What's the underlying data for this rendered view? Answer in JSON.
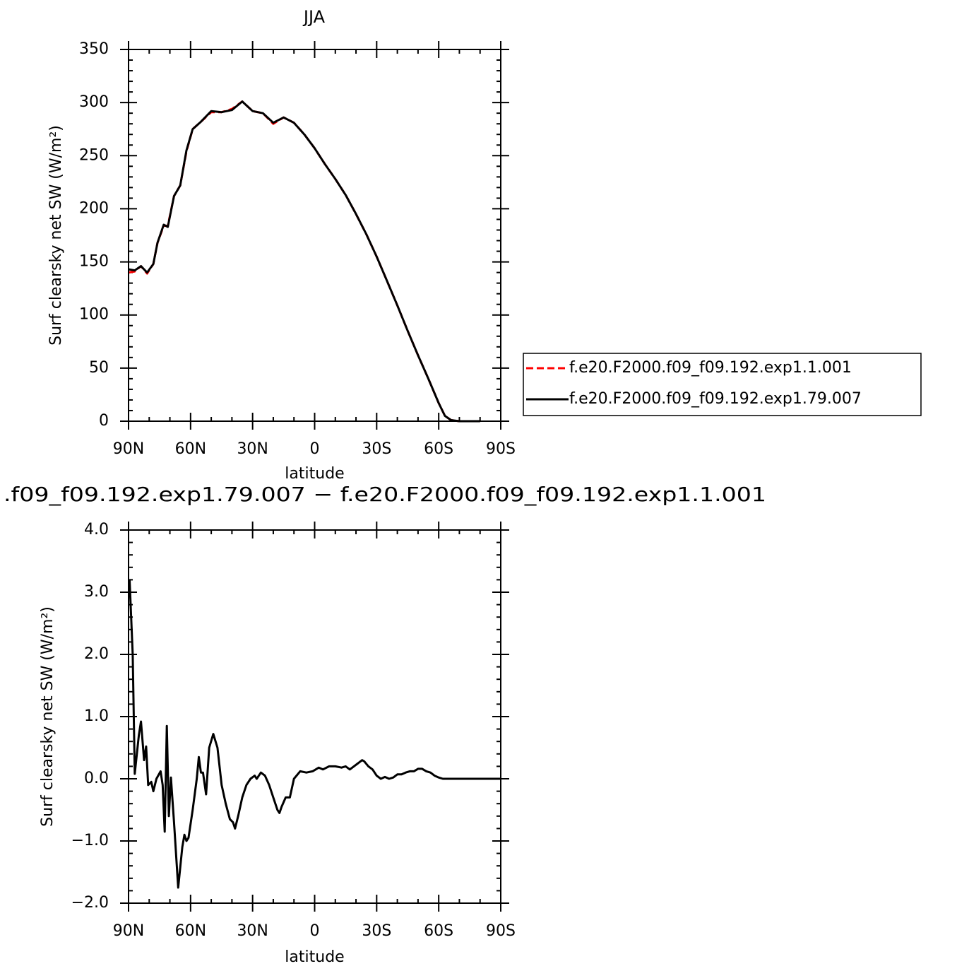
{
  "chart_data": [
    {
      "type": "line",
      "title": "JJA",
      "xlabel": "latitude",
      "ylabel": "Surf clearsky net SW (W/m²)",
      "xlim": [
        90,
        -90
      ],
      "xticks": [
        {
          "value": 90,
          "label": "90N"
        },
        {
          "value": 60,
          "label": "60N"
        },
        {
          "value": 30,
          "label": "30N"
        },
        0,
        {
          "value": -30,
          "label": "30S"
        },
        {
          "value": -60,
          "label": "60S"
        },
        {
          "value": -90,
          "label": "90S"
        }
      ],
      "ylim": [
        0,
        350
      ],
      "yticks": [
        0,
        50,
        100,
        150,
        200,
        250,
        300,
        350
      ],
      "legend": "right",
      "x": [
        90,
        87,
        84,
        81,
        78,
        76,
        73,
        71,
        68,
        65,
        62,
        59,
        55,
        50,
        45,
        40,
        35,
        30,
        25,
        20,
        15,
        10,
        5,
        0,
        -5,
        -10,
        -15,
        -20,
        -25,
        -30,
        -35,
        -40,
        -45,
        -50,
        -55,
        -60,
        -63,
        -66,
        -70,
        -80
      ],
      "series": [
        {
          "name": "f.e20.F2000.f09_f09.192.exp1.1.001",
          "color": "#ff0000",
          "dash": true,
          "values": [
            140,
            141,
            146,
            139,
            148,
            168,
            184,
            184,
            212,
            222,
            254,
            275,
            282,
            291,
            291,
            294,
            301,
            292,
            290,
            280,
            286,
            281,
            270,
            257,
            242,
            228,
            213,
            195,
            176,
            155,
            132,
            109,
            85,
            62,
            40,
            17,
            5,
            1,
            0,
            0
          ]
        },
        {
          "name": "f.e20.F2000.f09_f09.192.exp1.79.007",
          "color": "#000000",
          "dash": false,
          "values": [
            143,
            142,
            146,
            140,
            148,
            168,
            185,
            183,
            212,
            222,
            255,
            275,
            282,
            292,
            291,
            293,
            301,
            292,
            290,
            281,
            286,
            281,
            270,
            257,
            242,
            228,
            213,
            195,
            176,
            155,
            132,
            109,
            85,
            62,
            40,
            17,
            5,
            1,
            0,
            0
          ]
        }
      ]
    },
    {
      "type": "line",
      "title": ".f09_f09.192.exp1.79.007 − f.e20.F2000.f09_f09.192.exp1.1.001",
      "xlabel": "latitude",
      "ylabel": "Surf clearsky net SW (W/m²)",
      "xlim": [
        90,
        -90
      ],
      "xticks": [
        {
          "value": 90,
          "label": "90N"
        },
        {
          "value": 60,
          "label": "60N"
        },
        {
          "value": 30,
          "label": "30N"
        },
        0,
        {
          "value": -30,
          "label": "30S"
        },
        {
          "value": -60,
          "label": "60S"
        },
        {
          "value": -90,
          "label": "90S"
        }
      ],
      "ylim": [
        -2,
        4
      ],
      "yticks": [
        {
          "value": -2,
          "label": "−2.0"
        },
        {
          "value": -1,
          "label": "−1.0"
        },
        {
          "value": 0,
          "label": "0.0"
        },
        {
          "value": 1,
          "label": "1.0"
        },
        {
          "value": 2,
          "label": "2.0"
        },
        {
          "value": 3,
          "label": "3.0"
        },
        {
          "value": 4,
          "label": "4.0"
        }
      ],
      "x": [
        89.5,
        88,
        87,
        85,
        84,
        82.5,
        81.5,
        80.5,
        79,
        78,
        76.5,
        74.5,
        73.5,
        72.5,
        71.5,
        70.5,
        69.5,
        68,
        66,
        64,
        63,
        62,
        61,
        59,
        57,
        56,
        55,
        54,
        52.5,
        51,
        49,
        47,
        45,
        43,
        41,
        39.5,
        38.5,
        37,
        35,
        33,
        31,
        29,
        28,
        26,
        24,
        22,
        20,
        18,
        17,
        16,
        14,
        12,
        10,
        7,
        4,
        1,
        -2,
        -4,
        -7,
        -10,
        -13,
        -15,
        -17,
        -19,
        -21,
        -23,
        -24,
        -26,
        -28,
        -30,
        -32,
        -34,
        -36,
        -38,
        -40,
        -42,
        -44,
        -46,
        -48,
        -50,
        -52,
        -54,
        -56,
        -58,
        -60,
        -62,
        -70,
        -80,
        -90
      ],
      "series": [
        {
          "color": "#000000",
          "dash": false,
          "values": [
            3.2,
            2.0,
            0.08,
            0.7,
            0.92,
            0.3,
            0.52,
            -0.1,
            -0.05,
            -0.2,
            0.0,
            0.12,
            -0.1,
            -0.85,
            0.85,
            -0.6,
            0.02,
            -0.7,
            -1.75,
            -1.1,
            -0.9,
            -1.0,
            -0.95,
            -0.5,
            0.0,
            0.35,
            0.1,
            0.1,
            -0.25,
            0.5,
            0.72,
            0.5,
            -0.1,
            -0.4,
            -0.65,
            -0.7,
            -0.8,
            -0.6,
            -0.3,
            -0.1,
            0.0,
            0.05,
            0.0,
            0.1,
            0.05,
            -0.1,
            -0.3,
            -0.5,
            -0.55,
            -0.45,
            -0.3,
            -0.3,
            0.0,
            0.12,
            0.1,
            0.12,
            0.18,
            0.15,
            0.2,
            0.2,
            0.18,
            0.2,
            0.15,
            0.2,
            0.25,
            0.3,
            0.28,
            0.2,
            0.15,
            0.05,
            0.0,
            0.03,
            0.0,
            0.02,
            0.07,
            0.07,
            0.1,
            0.12,
            0.12,
            0.16,
            0.16,
            0.12,
            0.1,
            0.05,
            0.02,
            0.0,
            0.0,
            0.0,
            0.0
          ]
        }
      ]
    }
  ]
}
